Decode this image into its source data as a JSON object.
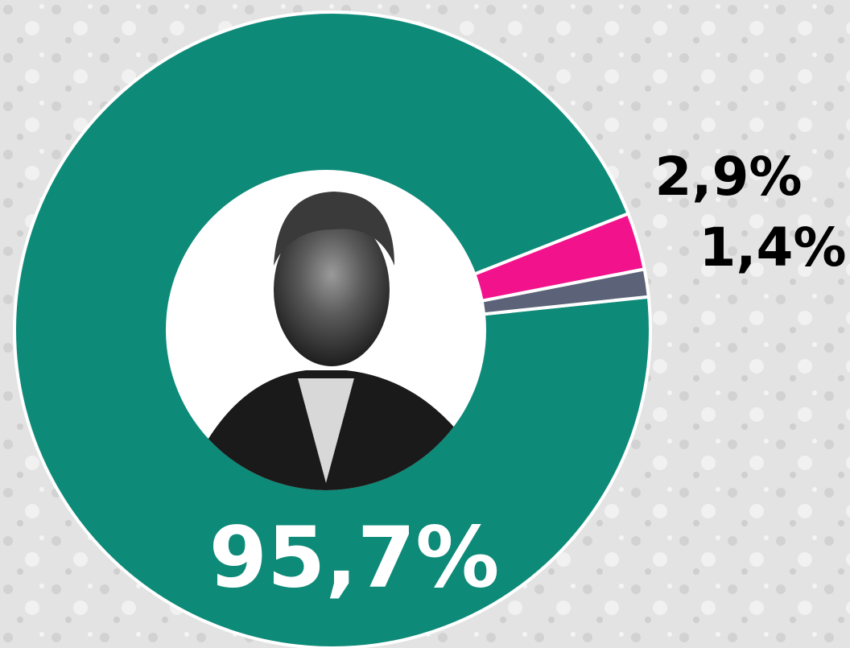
{
  "chart_data": {
    "type": "donut",
    "values": [
      95.7,
      2.9,
      1.4
    ],
    "value_labels": [
      "95,7%",
      "2,9%",
      "1,4%"
    ],
    "colors": [
      "#0d8a78",
      "#f2128c",
      "#5c6378"
    ]
  }
}
